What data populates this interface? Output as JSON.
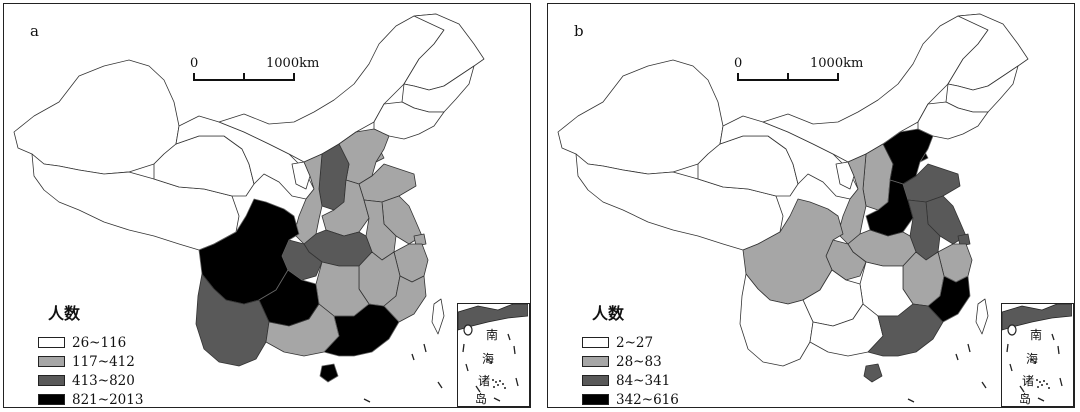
{
  "legend_title": "人数",
  "scale": {
    "zero": "0",
    "end": "1000km"
  },
  "inset_labels": [
    "南",
    "海",
    "诸",
    "岛"
  ],
  "panels": [
    {
      "letter": "a",
      "legend": [
        {
          "label": "26~116",
          "color": "#ffffff"
        },
        {
          "label": "117~412",
          "color": "#a6a6a6"
        },
        {
          "label": "413~820",
          "color": "#595959"
        },
        {
          "label": "821~2013",
          "color": "#000000"
        }
      ]
    },
    {
      "letter": "b",
      "legend": [
        {
          "label": "2~27",
          "color": "#ffffff"
        },
        {
          "label": "28~83",
          "color": "#a6a6a6"
        },
        {
          "label": "84~341",
          "color": "#595959"
        },
        {
          "label": "342~616",
          "color": "#000000"
        }
      ]
    }
  ],
  "map_classes": {
    "a": {
      "xinjiang": 0,
      "xizang": 0,
      "qinghai": 0,
      "gansu": 0,
      "neimenggu": 0,
      "heilongjiang": 0,
      "jilin": 0,
      "liaoning": 0,
      "ningxia": 0,
      "beijing": 1,
      "tianjin": 1,
      "hebei": 1,
      "shanxi": 2,
      "shaanxi": 1,
      "shandong": 1,
      "henan": 1,
      "jiangsu": 1,
      "anhui": 1,
      "sichuan": 3,
      "chongqing": 2,
      "hubei": 2,
      "hunan": 1,
      "jiangxi": 1,
      "zhejiang": 1,
      "shanghai": 1,
      "fujian": 1,
      "guizhou": 3,
      "yunnan": 2,
      "guangxi": 1,
      "guangdong": 3,
      "hainan": 3,
      "taiwan": 0
    },
    "b": {
      "xinjiang": 0,
      "xizang": 0,
      "qinghai": 0,
      "gansu": 0,
      "neimenggu": 0,
      "heilongjiang": 0,
      "jilin": 0,
      "liaoning": 0,
      "ningxia": 0,
      "beijing": 3,
      "tianjin": 3,
      "hebei": 3,
      "shanxi": 1,
      "shaanxi": 1,
      "shandong": 2,
      "henan": 3,
      "jiangsu": 2,
      "anhui": 2,
      "sichuan": 1,
      "chongqing": 1,
      "hubei": 1,
      "hunan": 0,
      "jiangxi": 1,
      "zhejiang": 1,
      "shanghai": 2,
      "fujian": 3,
      "guizhou": 0,
      "yunnan": 0,
      "guangxi": 0,
      "guangdong": 2,
      "hainan": 2,
      "taiwan": 0
    }
  }
}
